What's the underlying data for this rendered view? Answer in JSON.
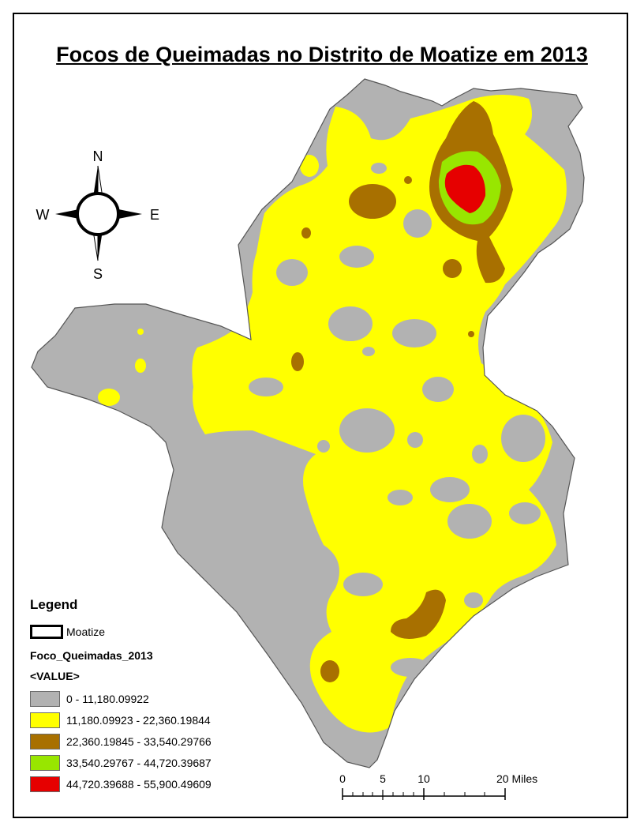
{
  "title": "Focos de Queimadas no Distrito de Moatize em 2013",
  "compass": {
    "n": "N",
    "s": "S",
    "e": "E",
    "w": "W"
  },
  "legend": {
    "title": "Legend",
    "boundary_label": "Moatize",
    "layer_name": "Foco_Queimadas_2013",
    "field_label": "<VALUE>",
    "classes": [
      {
        "label": "0 - 11,180.09922",
        "color": "#b2b2b2"
      },
      {
        "label": "11,180.09923 - 22,360.19844",
        "color": "#ffff00"
      },
      {
        "label": "22,360.19845 - 33,540.29766",
        "color": "#a87000"
      },
      {
        "label": "33,540.29767 - 44,720.39687",
        "color": "#98e600"
      },
      {
        "label": "44,720.39688 - 55,900.49609",
        "color": "#e60000"
      }
    ]
  },
  "scalebar": {
    "ticks": [
      "0",
      "5",
      "10",
      "20 Miles"
    ]
  }
}
